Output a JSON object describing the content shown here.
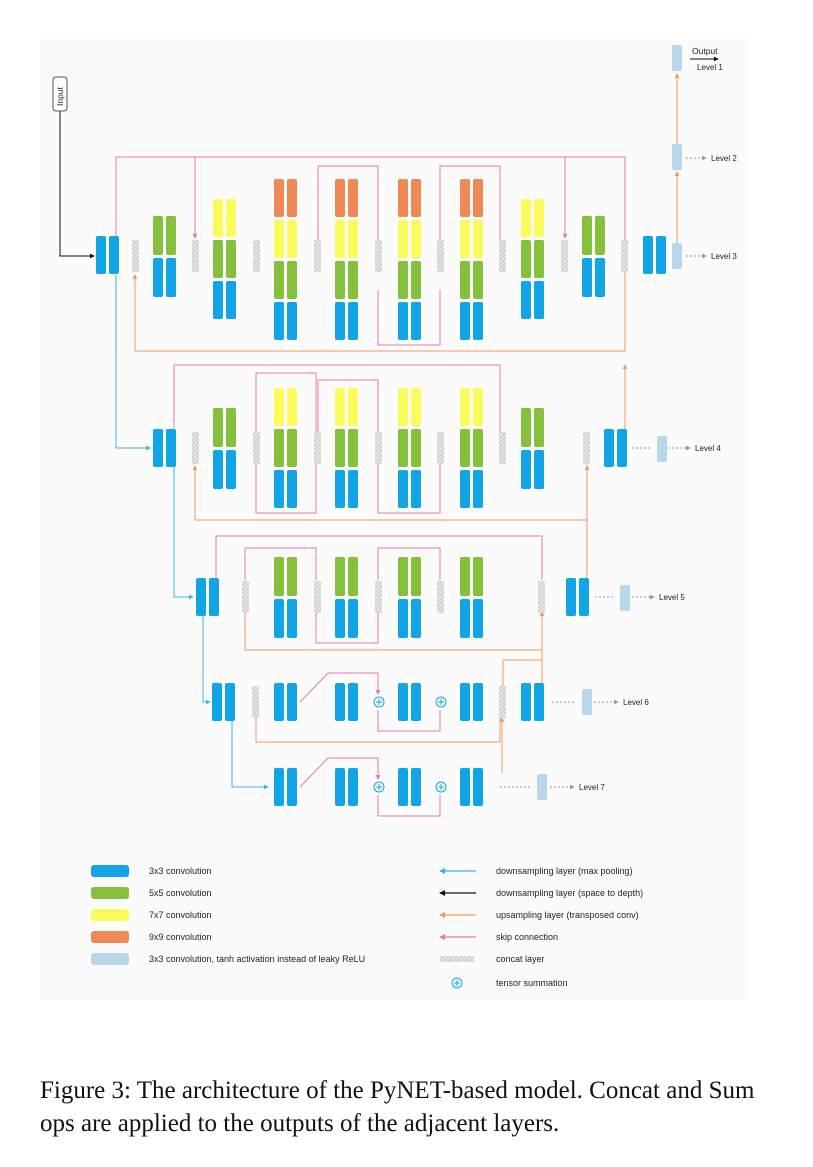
{
  "diagram": {
    "input_label": "Input",
    "output_label": "Output",
    "level_labels": [
      "Level 1",
      "Level 2",
      "Level 3",
      "Level 4",
      "Level 5",
      "Level 6",
      "Level 7"
    ]
  },
  "legend": {
    "items": [
      {
        "label": "3x3 convolution",
        "kind": "block",
        "color": "#12a5e6"
      },
      {
        "label": "5x5 convolution",
        "kind": "block",
        "color": "#86bf3b"
      },
      {
        "label": "7x7 convolution",
        "kind": "block",
        "color": "#fbfb5c"
      },
      {
        "label": "9x9 convolution",
        "kind": "block",
        "color": "#ef8a57"
      },
      {
        "label": "3x3 convolution, tanh activation instead of leaky ReLU",
        "kind": "block",
        "color": "#b8d7ea"
      },
      {
        "label": "downsampling layer (max pooling)",
        "kind": "arrow",
        "color": "#3bb3e8"
      },
      {
        "label": "downsampling layer (space to depth)",
        "kind": "arrow",
        "color": "#111111"
      },
      {
        "label": "upsampling layer (transposed conv)",
        "kind": "arrow",
        "color": "#f29a5a"
      },
      {
        "label": "skip connection",
        "kind": "arrow",
        "color": "#e77aa3"
      },
      {
        "label": "concat layer",
        "kind": "concat",
        "color": "#c9c9c9"
      },
      {
        "label": "tensor summation",
        "kind": "sum",
        "color": "#12a5e6"
      }
    ]
  },
  "caption": {
    "text": "Figure 3: The architecture of the PyNET-based model. Concat and Sum ops are applied to the outputs of the adjacent layers."
  }
}
